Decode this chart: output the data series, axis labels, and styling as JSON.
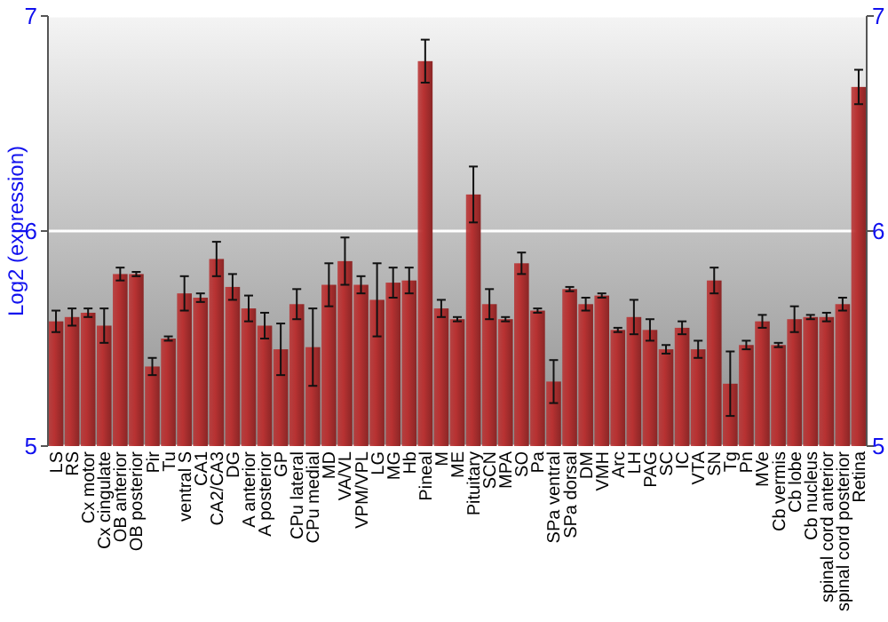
{
  "chart_data": {
    "type": "bar",
    "ylabel": "Log2 (expression)",
    "categories": [
      "LS",
      "RS",
      "Cx motor",
      "Cx cingulate",
      "OB anterior",
      "OB posterior",
      "Pir",
      "Tu",
      "ventral S",
      "CA1",
      "CA2/CA3",
      "DG",
      "A anterior",
      "A posterior",
      "GP",
      "CPu lateral",
      "CPu medial",
      "MD",
      "VA/VL",
      "VPM/VPL",
      "LG",
      "MG",
      "Hb",
      "Pineal",
      "M",
      "ME",
      "Pituitary",
      "SCN",
      "MPA",
      "SO",
      "Pa",
      "SPa ventral",
      "SPa dorsal",
      "DM",
      "VMH",
      "Arc",
      "LH",
      "PAG",
      "SC",
      "IC",
      "VTA",
      "SN",
      "Tg",
      "Pn",
      "MVe",
      "Cb vermis",
      "Cb lobe",
      "Cb nucleus",
      "spinal cord anterior",
      "spinal cord posterior",
      "Retina"
    ],
    "values": [
      5.58,
      5.6,
      5.62,
      5.56,
      5.8,
      5.8,
      5.37,
      5.5,
      5.71,
      5.69,
      5.87,
      5.74,
      5.64,
      5.56,
      5.45,
      5.66,
      5.46,
      5.75,
      5.86,
      5.75,
      5.68,
      5.76,
      5.77,
      6.79,
      5.64,
      5.59,
      6.17,
      5.66,
      5.59,
      5.85,
      5.63,
      5.3,
      5.73,
      5.66,
      5.7,
      5.54,
      5.6,
      5.54,
      5.45,
      5.55,
      5.45,
      5.77,
      5.29,
      5.47,
      5.58,
      5.47,
      5.59,
      5.6,
      5.6,
      5.66,
      6.67
    ],
    "errors": [
      0.05,
      0.04,
      0.02,
      0.08,
      0.03,
      0.01,
      0.04,
      0.01,
      0.08,
      0.02,
      0.08,
      0.06,
      0.06,
      0.06,
      0.12,
      0.07,
      0.18,
      0.1,
      0.11,
      0.04,
      0.17,
      0.07,
      0.06,
      0.1,
      0.04,
      0.01,
      0.13,
      0.07,
      0.01,
      0.05,
      0.01,
      0.1,
      0.01,
      0.03,
      0.01,
      0.01,
      0.08,
      0.05,
      0.02,
      0.03,
      0.04,
      0.06,
      0.15,
      0.02,
      0.03,
      0.01,
      0.06,
      0.01,
      0.02,
      0.03,
      0.08
    ],
    "color": "#b83232",
    "ylim": [
      5,
      7
    ],
    "yticks": [
      5,
      6,
      7
    ],
    "y2lim": [
      5,
      7
    ],
    "y2ticks": [
      5,
      6,
      7
    ],
    "grid": "y"
  }
}
